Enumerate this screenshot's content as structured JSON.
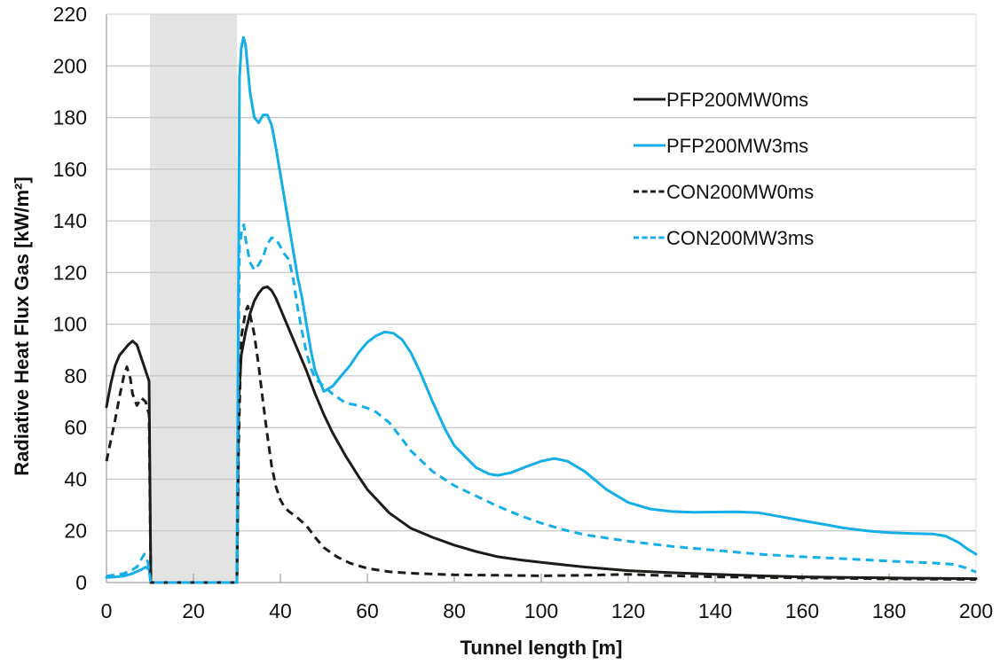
{
  "chart_data": {
    "type": "line",
    "title": "",
    "xlabel": "Tunnel length [m]",
    "ylabel": "Radiative Heat Flux Gas [kW/m²]",
    "xlim": [
      0,
      200
    ],
    "ylim": [
      0,
      220
    ],
    "xticks": [
      0,
      20,
      40,
      60,
      80,
      100,
      120,
      140,
      160,
      180,
      200
    ],
    "yticks": [
      0,
      20,
      40,
      60,
      80,
      100,
      120,
      140,
      160,
      180,
      200,
      220
    ],
    "grid": "horizontal",
    "legend_position": "top-right",
    "shaded_region": {
      "x_start": 10,
      "x_end": 30,
      "color": "#e3e3e3"
    },
    "series": [
      {
        "name": "PFP200MW0ms",
        "color": "#1c1c18",
        "dash": "solid",
        "points": [
          [
            0,
            68
          ],
          [
            1,
            77
          ],
          [
            2,
            84
          ],
          [
            3,
            88
          ],
          [
            4,
            90
          ],
          [
            5,
            92
          ],
          [
            6,
            93.5
          ],
          [
            7,
            92
          ],
          [
            8,
            87
          ],
          [
            9,
            82
          ],
          [
            9.8,
            78
          ],
          [
            10.2,
            0
          ],
          [
            30,
            0
          ],
          [
            30.4,
            70
          ],
          [
            31,
            88
          ],
          [
            32,
            97
          ],
          [
            33,
            104
          ],
          [
            34,
            109
          ],
          [
            35,
            112
          ],
          [
            36,
            114
          ],
          [
            37,
            114.5
          ],
          [
            38,
            113
          ],
          [
            39,
            110
          ],
          [
            40,
            106
          ],
          [
            42,
            98
          ],
          [
            44,
            90
          ],
          [
            46,
            82
          ],
          [
            48,
            73
          ],
          [
            50,
            65
          ],
          [
            52,
            58
          ],
          [
            55,
            49
          ],
          [
            58,
            41
          ],
          [
            60,
            36
          ],
          [
            65,
            27
          ],
          [
            70,
            21
          ],
          [
            75,
            17.5
          ],
          [
            80,
            14.5
          ],
          [
            85,
            12
          ],
          [
            90,
            10
          ],
          [
            95,
            8.8
          ],
          [
            100,
            7.8
          ],
          [
            110,
            6
          ],
          [
            120,
            4.6
          ],
          [
            130,
            3.8
          ],
          [
            140,
            3.2
          ],
          [
            150,
            2.6
          ],
          [
            160,
            2.2
          ],
          [
            170,
            2
          ],
          [
            180,
            1.8
          ],
          [
            190,
            1.6
          ],
          [
            200,
            1.5
          ]
        ]
      },
      {
        "name": "PFP200MW3ms",
        "color": "#14aee8",
        "dash": "solid",
        "points": [
          [
            0,
            2
          ],
          [
            2,
            2.2
          ],
          [
            4,
            2.5
          ],
          [
            6,
            3.5
          ],
          [
            8,
            5
          ],
          [
            9,
            6
          ],
          [
            9.8,
            5
          ],
          [
            10.2,
            0
          ],
          [
            30,
            0
          ],
          [
            30.3,
            100
          ],
          [
            30.6,
            195
          ],
          [
            31,
            207
          ],
          [
            31.5,
            211
          ],
          [
            32,
            208
          ],
          [
            33,
            190
          ],
          [
            34,
            180
          ],
          [
            35,
            178
          ],
          [
            36,
            181
          ],
          [
            37,
            181
          ],
          [
            38,
            177
          ],
          [
            39,
            168
          ],
          [
            40,
            158
          ],
          [
            42,
            138
          ],
          [
            44,
            118
          ],
          [
            45,
            110
          ],
          [
            46,
            100
          ],
          [
            47,
            90
          ],
          [
            48,
            82
          ],
          [
            49,
            78
          ],
          [
            50,
            74
          ],
          [
            52,
            76
          ],
          [
            54,
            80
          ],
          [
            56,
            84
          ],
          [
            58,
            89
          ],
          [
            60,
            93
          ],
          [
            62,
            95.5
          ],
          [
            64,
            97
          ],
          [
            66,
            96.5
          ],
          [
            68,
            94
          ],
          [
            70,
            89
          ],
          [
            72,
            82
          ],
          [
            75,
            70
          ],
          [
            78,
            59
          ],
          [
            80,
            53
          ],
          [
            85,
            44.5
          ],
          [
            88,
            42
          ],
          [
            90,
            41.5
          ],
          [
            93,
            42.5
          ],
          [
            96,
            44.5
          ],
          [
            100,
            47
          ],
          [
            103,
            48
          ],
          [
            106,
            47
          ],
          [
            110,
            43
          ],
          [
            115,
            36
          ],
          [
            120,
            31
          ],
          [
            125,
            28.5
          ],
          [
            130,
            27.5
          ],
          [
            135,
            27.2
          ],
          [
            140,
            27.3
          ],
          [
            145,
            27.4
          ],
          [
            150,
            27
          ],
          [
            155,
            25.5
          ],
          [
            160,
            24
          ],
          [
            165,
            22.5
          ],
          [
            170,
            21
          ],
          [
            175,
            20
          ],
          [
            180,
            19.3
          ],
          [
            185,
            19
          ],
          [
            190,
            18.8
          ],
          [
            193,
            18
          ],
          [
            196,
            15.5
          ],
          [
            198,
            13
          ],
          [
            200,
            11
          ]
        ]
      },
      {
        "name": "CON200MW0ms",
        "color": "#1c1c18",
        "dash": "dashed",
        "points": [
          [
            0,
            47
          ],
          [
            1,
            55
          ],
          [
            2,
            63
          ],
          [
            3,
            72
          ],
          [
            4,
            80
          ],
          [
            4.7,
            83.5
          ],
          [
            5.5,
            79
          ],
          [
            6,
            73
          ],
          [
            7,
            68.5
          ],
          [
            8,
            71.5
          ],
          [
            9,
            70
          ],
          [
            9.8,
            65
          ],
          [
            10.2,
            0
          ],
          [
            30,
            0
          ],
          [
            30.4,
            55
          ],
          [
            31,
            95
          ],
          [
            32,
            105
          ],
          [
            32.5,
            107
          ],
          [
            33,
            104
          ],
          [
            34,
            96
          ],
          [
            35,
            84
          ],
          [
            36,
            70
          ],
          [
            37,
            57
          ],
          [
            38,
            45
          ],
          [
            39,
            37
          ],
          [
            40,
            32
          ],
          [
            41,
            29
          ],
          [
            42,
            27.5
          ],
          [
            44,
            25
          ],
          [
            46,
            22
          ],
          [
            48,
            17.5
          ],
          [
            50,
            13.5
          ],
          [
            53,
            10
          ],
          [
            56,
            7.5
          ],
          [
            60,
            5.5
          ],
          [
            65,
            4.2
          ],
          [
            70,
            3.6
          ],
          [
            80,
            3
          ],
          [
            90,
            2.8
          ],
          [
            100,
            2.6
          ],
          [
            110,
            2.8
          ],
          [
            120,
            3.2
          ],
          [
            130,
            2.6
          ],
          [
            140,
            2.2
          ],
          [
            150,
            2
          ],
          [
            160,
            1.8
          ],
          [
            170,
            1.6
          ],
          [
            180,
            1.4
          ],
          [
            190,
            1.3
          ],
          [
            200,
            1.2
          ]
        ]
      },
      {
        "name": "CON200MW3ms",
        "color": "#14aee8",
        "dash": "dashed",
        "points": [
          [
            0,
            2.5
          ],
          [
            2,
            3
          ],
          [
            4,
            3.5
          ],
          [
            6,
            5
          ],
          [
            7,
            6
          ],
          [
            8,
            9
          ],
          [
            8.7,
            11
          ],
          [
            9.5,
            8
          ],
          [
            10.2,
            0
          ],
          [
            30,
            0
          ],
          [
            30.3,
            80
          ],
          [
            30.6,
            130
          ],
          [
            31.2,
            137
          ],
          [
            31.6,
            138.5
          ],
          [
            32,
            133
          ],
          [
            33,
            124
          ],
          [
            34,
            121
          ],
          [
            35,
            123
          ],
          [
            36,
            126
          ],
          [
            37,
            131
          ],
          [
            38,
            133.5
          ],
          [
            39,
            133
          ],
          [
            40,
            130
          ],
          [
            41,
            127
          ],
          [
            42,
            125
          ],
          [
            43,
            117
          ],
          [
            44,
            106
          ],
          [
            45,
            97
          ],
          [
            46,
            89
          ],
          [
            47,
            83
          ],
          [
            48,
            79
          ],
          [
            50,
            76
          ],
          [
            52,
            73
          ],
          [
            55,
            69.5
          ],
          [
            58,
            68.5
          ],
          [
            60,
            67.5
          ],
          [
            62,
            66
          ],
          [
            65,
            62
          ],
          [
            68,
            55.5
          ],
          [
            70,
            51
          ],
          [
            75,
            43
          ],
          [
            80,
            37.5
          ],
          [
            85,
            33.5
          ],
          [
            90,
            29.5
          ],
          [
            95,
            26
          ],
          [
            100,
            23
          ],
          [
            105,
            20.5
          ],
          [
            110,
            18.5
          ],
          [
            120,
            16
          ],
          [
            130,
            14
          ],
          [
            140,
            12.5
          ],
          [
            150,
            11
          ],
          [
            160,
            10
          ],
          [
            170,
            9.2
          ],
          [
            180,
            8.3
          ],
          [
            190,
            7.6
          ],
          [
            195,
            7
          ],
          [
            198,
            5.5
          ],
          [
            200,
            4
          ]
        ]
      }
    ]
  }
}
